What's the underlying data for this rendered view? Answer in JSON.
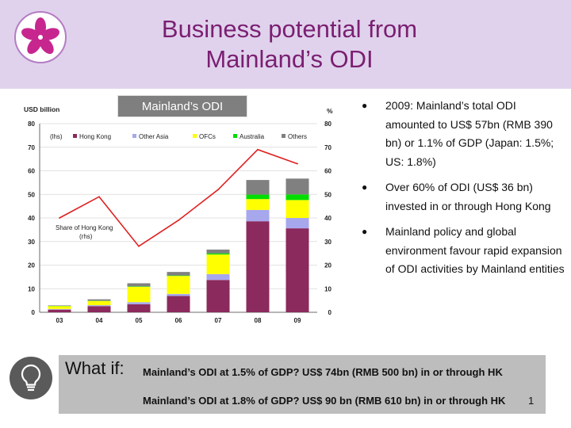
{
  "header": {
    "title_line1": "Business potential from",
    "title_line2": "Mainland’s ODI"
  },
  "chart_label": "Mainland’s ODI",
  "colors": {
    "hong_kong": "#8b2a5c",
    "other_asia": "#a7a7ee",
    "ofcs": "#ffff00",
    "australia": "#00dd00",
    "others": "#808080",
    "line": "#e02020"
  },
  "chart_data": {
    "type": "bar",
    "stacked": true,
    "ylabel_left": "USD billion",
    "ylabel_right": "%",
    "ylim": [
      0,
      80
    ],
    "yticks": [
      0,
      10,
      20,
      30,
      40,
      50,
      60,
      70,
      80
    ],
    "categories": [
      "03",
      "04",
      "05",
      "06",
      "07",
      "08",
      "09"
    ],
    "legend_prefix": "(lhs)",
    "series": [
      {
        "name": "Hong Kong",
        "values": [
          1.1,
          2.6,
          3.4,
          6.9,
          13.7,
          38.6,
          35.6
        ]
      },
      {
        "name": "Other Asia",
        "values": [
          0.3,
          0.4,
          0.9,
          0.9,
          2.5,
          4.8,
          4.4
        ]
      },
      {
        "name": "OFCs",
        "values": [
          1.2,
          1.8,
          6.5,
          7.6,
          8.3,
          4.6,
          7.6
        ]
      },
      {
        "name": "Australia",
        "values": [
          0.1,
          0.1,
          0.2,
          0.2,
          0.5,
          1.9,
          2.4
        ]
      },
      {
        "name": "Others",
        "values": [
          0.2,
          0.6,
          1.3,
          1.5,
          1.6,
          6.2,
          6.7
        ]
      }
    ],
    "line": {
      "name": "Share of Hong Kong",
      "axis_label": "(rhs)",
      "values": [
        40,
        49,
        28,
        39,
        52,
        69,
        63
      ]
    }
  },
  "bullets": [
    "2009: Mainland’s total ODI amounted to US$ 57bn (RMB 390 bn) or 1.1% of GDP (Japan: 1.5%; US: 1.8%)",
    "Over 60% of ODI (US$ 36 bn) invested in or through Hong Kong",
    "Mainland policy and global environment favour rapid expansion of ODI activities by Mainland entities"
  ],
  "whatif": {
    "label": "What if:",
    "line1": "Mainland’s ODI at 1.5% of GDP? US$ 74bn (RMB 500 bn) in or through HK",
    "line2": "Mainland’s ODI at 1.8% of GDP? US$ 90 bn (RMB 610 bn) in or through HK"
  },
  "page_number": "1",
  "icons": {
    "logo": "bauhinia-logo-icon",
    "bulb": "lightbulb-icon"
  }
}
